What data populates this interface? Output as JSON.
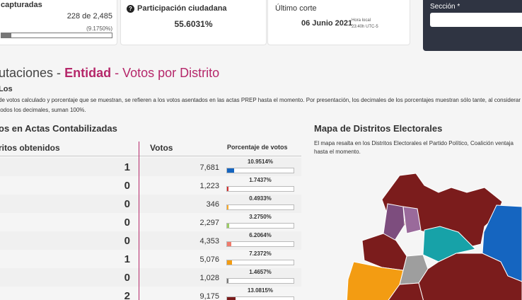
{
  "actas": {
    "label": "capturadas",
    "captured": "228",
    "of_text": "de 2,485",
    "percent": "(9.1750%)",
    "progress": 0.0918
  },
  "participacion": {
    "label": "Participación ciudadana",
    "value": "55.6031%",
    "icon": "question-circle-icon"
  },
  "corte": {
    "label": "Último corte",
    "date": "06 Junio 2021",
    "hora_line1": "Hora local",
    "hora_line2": "23:40h UTC-5"
  },
  "seccion": {
    "label": "Sección *",
    "value": ""
  },
  "page": {
    "title_prefix": "utaciones -",
    "title_entidad": "Entidad",
    "title_suffix": "- Votos por Distrito",
    "subtitle": "Los",
    "note": "de votos calculado y porcentaje que se muestran, se refieren a los votos asentados en las actas PREP hasta el momento. Por presentación, los decimales de los porcentajes muestran sólo tante, al considerar todos los decimales, suman 100%."
  },
  "votos_section": {
    "heading": "os en Actas Contabilizadas",
    "col_distritos": "ritos obtenidos",
    "col_votos": "Votos",
    "col_pct": "Porcentaje de votos",
    "rows": [
      {
        "distritos": "1",
        "votos": "7,681",
        "pct": "10.9514%",
        "ratio": 0.109514,
        "color": "#1565c0"
      },
      {
        "distritos": "0",
        "votos": "1,223",
        "pct": "1.7437%",
        "ratio": 0.017437,
        "color": "#d32f2f"
      },
      {
        "distritos": "0",
        "votos": "346",
        "pct": "0.4933%",
        "ratio": 0.004933,
        "color": "#f9a825"
      },
      {
        "distritos": "0",
        "votos": "2,297",
        "pct": "3.2750%",
        "ratio": 0.03275,
        "color": "#9ccc65"
      },
      {
        "distritos": "0",
        "votos": "4,353",
        "pct": "6.2064%",
        "ratio": 0.062064,
        "color": "#ef7b6c"
      },
      {
        "distritos": "1",
        "votos": "5,076",
        "pct": "7.2372%",
        "ratio": 0.072372,
        "color": "#f39c12"
      },
      {
        "distritos": "0",
        "votos": "1,028",
        "pct": "1.4657%",
        "ratio": 0.014657,
        "color": "#777777"
      },
      {
        "distritos": "2",
        "votos": "9,175",
        "pct": "13.0815%",
        "ratio": 0.130815,
        "color": "#7b1c1c"
      }
    ]
  },
  "mapa": {
    "heading": "Mapa de Distritos Electorales",
    "description": "El mapa resalta en los Distritos Electorales el Partido Político, Coalición ventaja hasta el momento."
  },
  "colors": {
    "accent": "#b5276a",
    "header_dark": "#2f3442",
    "morena": "#7b1c1c",
    "pan": "#1565c0",
    "teal": "#17a2a8",
    "purple": "#7d4d7e",
    "gray": "#9e9e9e",
    "orange": "#f39c12"
  }
}
